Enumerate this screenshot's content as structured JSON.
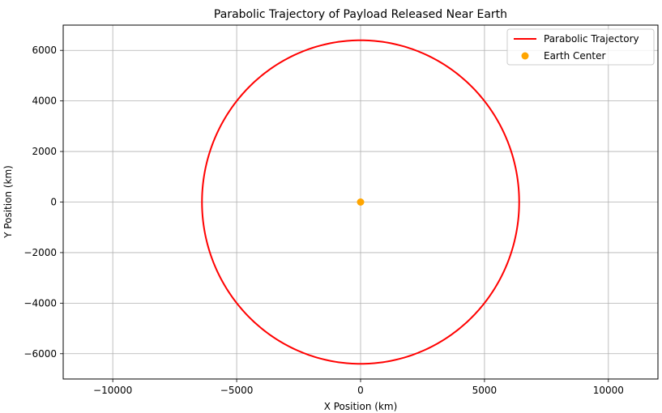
{
  "chart_data": {
    "type": "line",
    "title": "Parabolic Trajectory of Payload Released Near Earth",
    "xlabel": "X Position (km)",
    "ylabel": "Y Position (km)",
    "xlim": [
      -12000,
      12000
    ],
    "ylim": [
      -7000,
      7000
    ],
    "xticks": [
      -10000,
      -5000,
      0,
      5000,
      10000
    ],
    "yticks": [
      -6000,
      -4000,
      -2000,
      0,
      2000,
      4000,
      6000
    ],
    "grid": true,
    "legend_position": "top-right",
    "series": [
      {
        "name": "Parabolic Trajectory",
        "kind": "line",
        "color": "#ff0000",
        "shape": "circle",
        "center": [
          0,
          0
        ],
        "radius": 6400
      },
      {
        "name": "Earth Center",
        "kind": "scatter",
        "color": "#ffa500",
        "points": [
          [
            0,
            0
          ]
        ]
      }
    ]
  }
}
